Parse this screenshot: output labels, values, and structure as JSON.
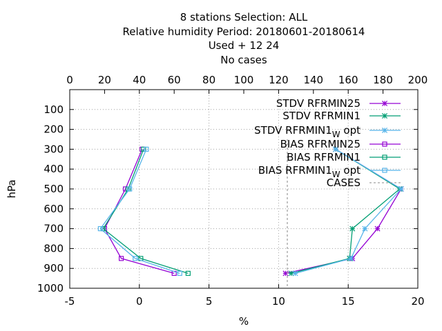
{
  "chart_data": {
    "type": "line",
    "title": [
      "8 stations Selection: ALL",
      "Relative humidity  Period: 20180601-20180614",
      "Used   + 12 24",
      "No cases"
    ],
    "xlabel": "%",
    "ylabel": "hPa",
    "xlim": [
      -5,
      20
    ],
    "xticks": [
      -5,
      0,
      5,
      10,
      15,
      20
    ],
    "x2lim": [
      0,
      200
    ],
    "x2ticks": [
      0,
      20,
      40,
      60,
      80,
      100,
      120,
      140,
      160,
      180,
      200
    ],
    "ylim": [
      1000,
      0
    ],
    "yticks": [
      100,
      200,
      300,
      400,
      500,
      600,
      700,
      800,
      900,
      1000
    ],
    "grid": true,
    "legend_position": "top-right",
    "series": [
      {
        "name": "STDV RFRMIN25",
        "marker": "star",
        "color": "#9400d3",
        "points": [
          [
            14.1,
            300
          ],
          [
            18.8,
            500
          ],
          [
            17.1,
            700
          ],
          [
            15.3,
            850
          ],
          [
            10.5,
            925
          ]
        ]
      },
      {
        "name": "STDV RFRMIN1",
        "marker": "star",
        "color": "#009e73",
        "points": [
          [
            14.1,
            300
          ],
          [
            18.7,
            500
          ],
          [
            15.3,
            700
          ],
          [
            15.1,
            850
          ],
          [
            10.9,
            925
          ]
        ]
      },
      {
        "name": "STDV RFRMIN1_W opt",
        "marker": "star",
        "color": "#56b4e9",
        "points": [
          [
            14.1,
            300
          ],
          [
            18.8,
            500
          ],
          [
            16.2,
            700
          ],
          [
            15.2,
            850
          ],
          [
            11.2,
            925
          ]
        ]
      },
      {
        "name": "BIAS RFRMIN25",
        "marker": "square",
        "color": "#9400d3",
        "points": [
          [
            0.2,
            300
          ],
          [
            -1.0,
            500
          ],
          [
            -2.5,
            700
          ],
          [
            -1.3,
            850
          ],
          [
            2.5,
            925
          ]
        ]
      },
      {
        "name": "BIAS RFRMIN1",
        "marker": "square",
        "color": "#009e73",
        "points": [
          [
            0.3,
            300
          ],
          [
            -0.8,
            500
          ],
          [
            -2.6,
            700
          ],
          [
            0.1,
            850
          ],
          [
            3.5,
            925
          ]
        ]
      },
      {
        "name": "BIAS RFRMIN1_W opt",
        "marker": "square",
        "color": "#56b4e9",
        "points": [
          [
            0.5,
            300
          ],
          [
            -0.7,
            500
          ],
          [
            -2.8,
            700
          ],
          [
            -0.3,
            850
          ],
          [
            2.9,
            925
          ]
        ]
      },
      {
        "name": "CASES",
        "marker": "none",
        "dashed": true,
        "color": "#a0a0a0",
        "axis": "x2",
        "points": [
          [
            125,
            250
          ],
          [
            125,
            1000
          ]
        ]
      }
    ]
  }
}
